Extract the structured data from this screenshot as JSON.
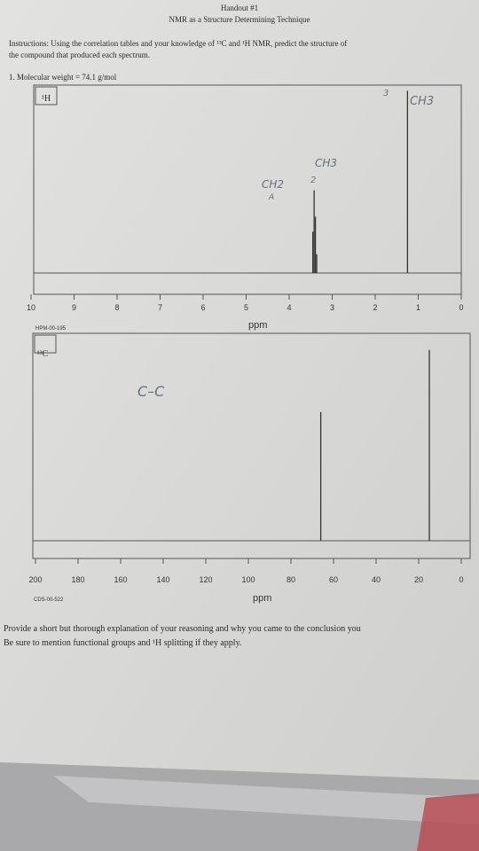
{
  "header": {
    "title": "Handout #1",
    "subtitle": "NMR as a Structure Determining Technique"
  },
  "instructions": [
    "Instructions: Using the correlation tables and your knowledge of ¹³C and ¹H NMR, predict the structure of",
    "the compound that produced each spectrum."
  ],
  "question": "1.  Molecular weight = 74.1 g/mol",
  "spectra": [
    {
      "type": "spectrum",
      "label": "¹H",
      "xlabel": "ppm",
      "code": "HPM-00-195",
      "xlim": [
        10,
        0
      ],
      "xticks": [
        10,
        9,
        8,
        7,
        6,
        5,
        4,
        3,
        2,
        1,
        0
      ],
      "x": [
        3.45,
        3.42,
        3.39,
        3.36,
        1.25
      ],
      "intensities": [
        22,
        44,
        30,
        10,
        97
      ],
      "annotations": [
        "CH3",
        "3",
        "CH2",
        "2",
        "A",
        "CH3"
      ]
    },
    {
      "type": "spectrum",
      "label": "¹³C",
      "xlabel": "ppm",
      "code": "CDS-00-522",
      "xlim": [
        200,
        0
      ],
      "xticks": [
        200,
        180,
        160,
        140,
        120,
        100,
        80,
        60,
        40,
        20,
        0
      ],
      "x": [
        66,
        15
      ],
      "intensities": [
        62,
        92
      ],
      "annotations": [
        "C–C"
      ]
    }
  ],
  "footer": [
    "Provide a short but thorough explanation of your reasoning and why you came to the conclusion you",
    "Be sure to mention functional groups and ¹H splitting if they apply."
  ]
}
